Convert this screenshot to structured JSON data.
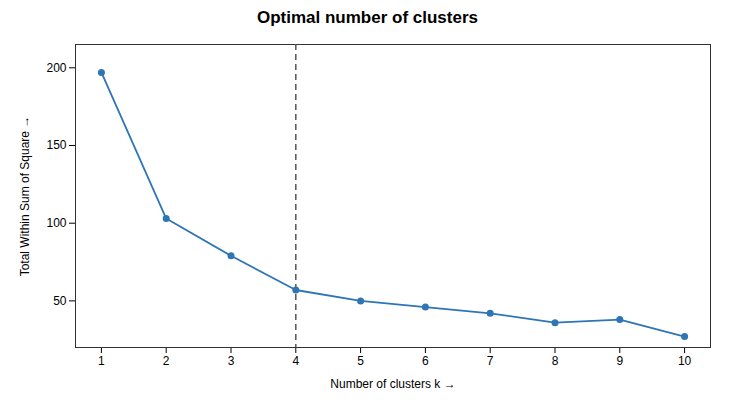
{
  "chart_data": {
    "type": "line",
    "title": "Optimal number of clusters",
    "xlabel": "Number of clusters k",
    "ylabel": "Total Within Sum of Square",
    "x": [
      1,
      2,
      3,
      4,
      5,
      6,
      7,
      8,
      9,
      10
    ],
    "values": [
      197,
      103,
      79,
      57,
      50,
      46,
      42,
      36,
      38,
      27
    ],
    "color": "#2e75b6",
    "marker": "circle",
    "line_style": "solid",
    "annotations": [
      {
        "type": "vline",
        "x": 4,
        "color": "#555555",
        "line_style": "dashed"
      }
    ],
    "xlim": [
      0.6,
      10.4
    ],
    "ylim": [
      20,
      215
    ],
    "xticks": [
      1,
      2,
      3,
      4,
      5,
      6,
      7,
      8,
      9,
      10
    ],
    "yticks": [
      50,
      100,
      150,
      200
    ],
    "grid": false
  }
}
